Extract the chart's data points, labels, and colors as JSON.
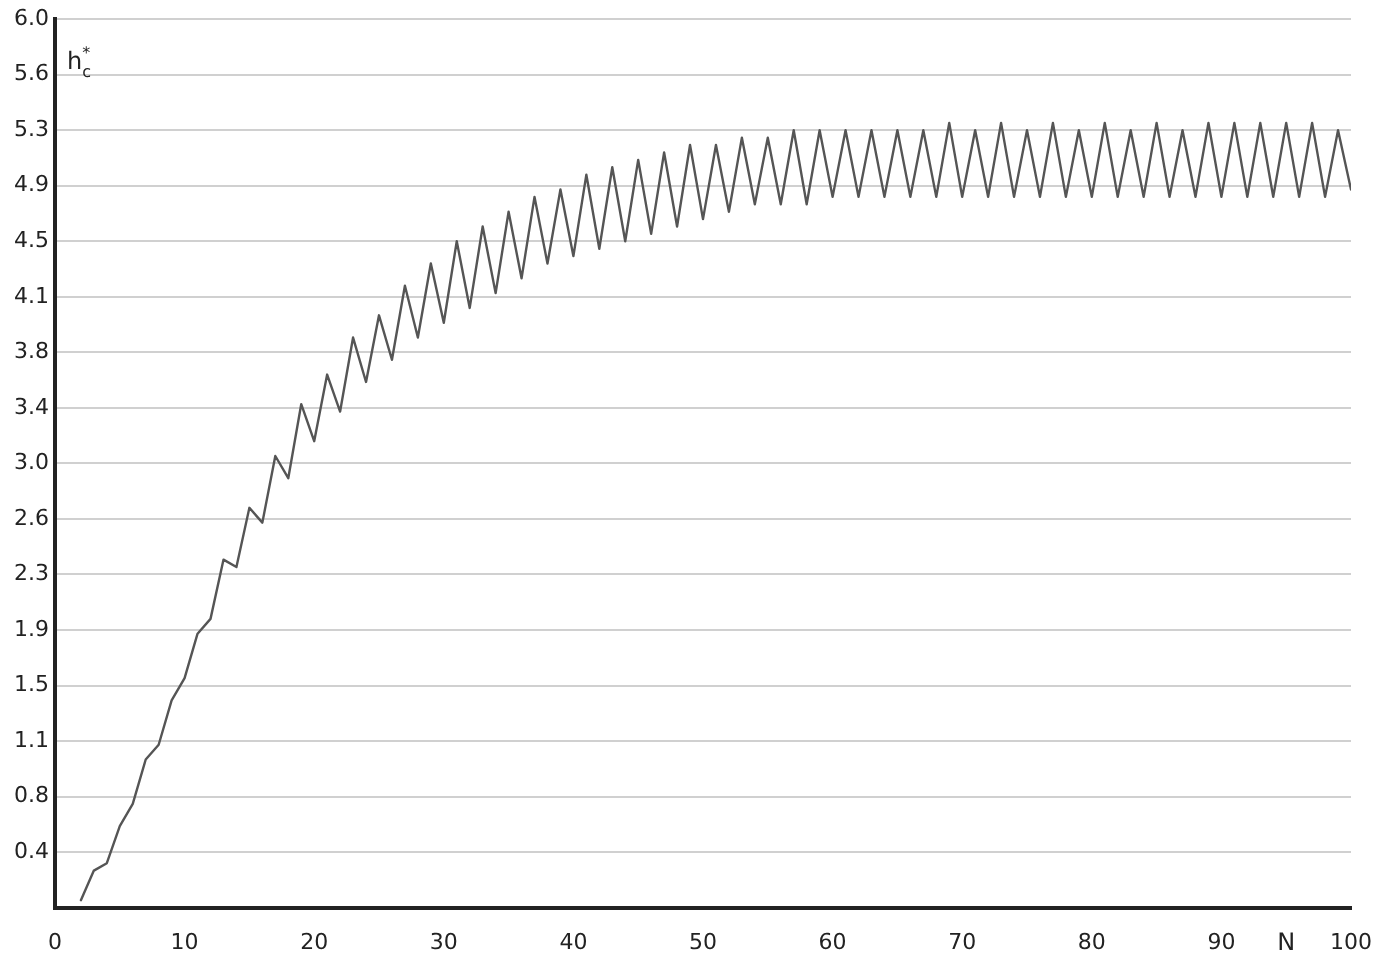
{
  "chart_data": {
    "type": "line",
    "xlabel": "N",
    "ylabel": "h$_{c}$$^{*}$",
    "x": [
      2,
      3,
      4,
      5,
      6,
      7,
      8,
      9,
      10,
      11,
      12,
      13,
      14,
      15,
      16,
      17,
      18,
      19,
      20,
      21,
      22,
      23,
      24,
      25,
      26,
      27,
      28,
      29,
      30,
      31,
      32,
      33,
      34,
      35,
      36,
      37,
      38,
      39,
      40,
      41,
      42,
      43,
      44,
      45,
      46,
      47,
      48,
      49,
      50,
      51,
      52,
      53,
      54,
      55,
      56,
      57,
      58,
      59,
      60,
      61,
      62,
      63,
      64,
      65,
      66,
      67,
      68,
      69,
      70,
      71,
      72,
      73,
      74,
      75,
      76,
      77,
      78,
      79,
      80,
      81,
      82,
      83,
      84,
      85,
      86,
      87,
      88,
      89,
      90,
      91,
      92,
      93,
      94,
      95,
      96,
      97,
      98,
      99,
      100
    ],
    "series": [
      {
        "color": "#555555",
        "values": [
          0.05,
          0.25,
          0.3,
          0.55,
          0.7,
          1.0,
          1.1,
          1.4,
          1.55,
          1.85,
          1.95,
          2.35,
          2.3,
          2.7,
          2.6,
          3.05,
          2.9,
          3.4,
          3.15,
          3.6,
          3.35,
          3.85,
          3.55,
          4.0,
          3.7,
          4.2,
          3.85,
          4.35,
          3.95,
          4.5,
          4.05,
          4.6,
          4.15,
          4.7,
          4.25,
          4.8,
          4.35,
          4.85,
          4.4,
          4.95,
          4.45,
          5.0,
          4.5,
          5.05,
          4.55,
          5.1,
          4.6,
          5.15,
          4.65,
          5.15,
          4.7,
          5.2,
          4.75,
          5.2,
          4.75,
          5.25,
          4.75,
          5.25,
          4.8,
          5.25,
          4.8,
          5.25,
          4.8,
          5.25,
          4.8,
          5.25,
          4.8,
          5.3,
          4.8,
          5.25,
          4.8,
          5.3,
          4.8,
          5.25,
          4.8,
          5.3,
          4.8,
          5.25,
          4.8,
          5.3,
          4.8,
          5.25,
          4.8,
          5.3,
          4.8,
          5.25,
          4.8,
          5.3,
          4.8,
          5.3,
          4.8,
          5.3,
          4.8,
          5.3,
          4.8,
          5.3,
          4.8,
          5.25,
          4.85
        ]
      }
    ],
    "xlim": [
      0,
      100
    ],
    "xticks": [
      0,
      10,
      20,
      30,
      40,
      50,
      60,
      70,
      80,
      90,
      100
    ],
    "ylim": [
      0,
      6.0
    ],
    "yticks": [
      {
        "value": 0.375,
        "label": "0.4"
      },
      {
        "value": 0.75,
        "label": "0.8"
      },
      {
        "value": 1.125,
        "label": "1.1"
      },
      {
        "value": 1.5,
        "label": "1.5"
      },
      {
        "value": 1.875,
        "label": "1.9"
      },
      {
        "value": 2.25,
        "label": "2.3"
      },
      {
        "value": 2.625,
        "label": "2.6"
      },
      {
        "value": 3.0,
        "label": "3.0"
      },
      {
        "value": 3.375,
        "label": "3.4"
      },
      {
        "value": 3.75,
        "label": "3.8"
      },
      {
        "value": 4.125,
        "label": "4.1"
      },
      {
        "value": 4.5,
        "label": "4.5"
      },
      {
        "value": 4.875,
        "label": "4.9"
      },
      {
        "value": 5.25,
        "label": "5.3"
      },
      {
        "value": 5.625,
        "label": "5.6"
      },
      {
        "value": 6.0,
        "label": "6.0"
      }
    ],
    "grid": "y",
    "legend": false,
    "marker": "none",
    "line_style": "solid"
  }
}
